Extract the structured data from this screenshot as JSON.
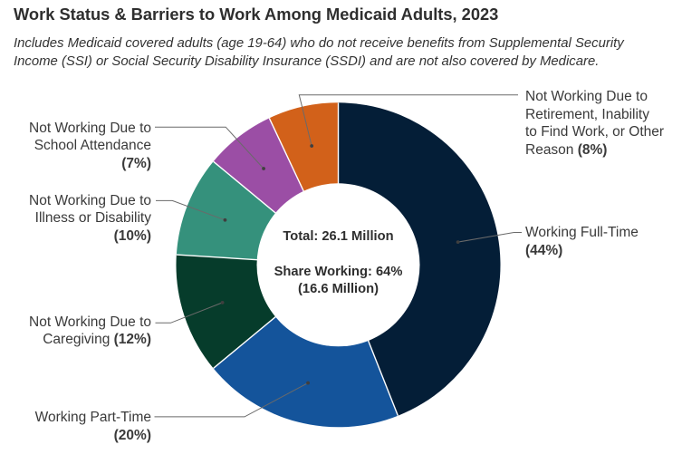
{
  "page": {
    "background": "#ffffff"
  },
  "header": {
    "title": "Work Status & Barriers to Work Among Medicaid Adults, 2023",
    "subtitle_lines": [
      "Includes Medicaid covered adults (age 19-64) who do not receive benefits from Supplemental Security",
      "Income (SSI) or Social Security Disability Insurance (SSDI) and are not also covered by Medicare."
    ]
  },
  "chart_data": {
    "type": "pie",
    "subtype": "donut",
    "title": "Work Status & Barriers to Work Among Medicaid Adults, 2023",
    "legend_position": "callout-labels",
    "grid": false,
    "center_label": {
      "lines": [
        "Total: 26.1 Million",
        "",
        "Share Working: 64%",
        "(16.6 Million)"
      ],
      "total_million": 26.1,
      "share_working_pct": 64,
      "share_working_million": 16.6
    },
    "segments": [
      {
        "name": "Working Full-Time",
        "value_pct": 44,
        "color": "#041e37",
        "label_lines": [
          "Working Full-Time",
          "(44%)"
        ]
      },
      {
        "name": "Working Part-Time",
        "value_pct": 20,
        "color": "#14549b",
        "label_lines": [
          "Working Part-Time",
          "(20%)"
        ]
      },
      {
        "name": "Not Working Due to Caregiving",
        "value_pct": 12,
        "color": "#063c2b",
        "label_lines": [
          "Not Working Due to",
          "Caregiving (12%)"
        ]
      },
      {
        "name": "Not Working Due to Illness or Disability",
        "value_pct": 10,
        "color": "#35917c",
        "label_lines": [
          "Not Working Due to",
          "Illness or Disability",
          "(10%)"
        ]
      },
      {
        "name": "Not Working Due to School Attendance",
        "value_pct": 7,
        "color": "#9b4ea5",
        "label_lines": [
          "Not Working Due to",
          "School Attendance",
          "(7%)"
        ]
      },
      {
        "name": "Not Working Due to Retirement, Inability to Find Work, or Other Reason",
        "value_pct": 8,
        "color": "#d2611a",
        "label_lines": [
          "Not Working Due to",
          "Retirement, Inability",
          "to Find Work, or Other",
          "Reason (8%)"
        ]
      }
    ],
    "colors": {
      "title_text": "#2e2e2e",
      "label_text": "#3a3a3a",
      "center_text": "#2e2e2e",
      "leader_line": "#6a6a6a",
      "leader_dot": "#3f3f3f",
      "segment_separator": "#ffffff"
    }
  }
}
